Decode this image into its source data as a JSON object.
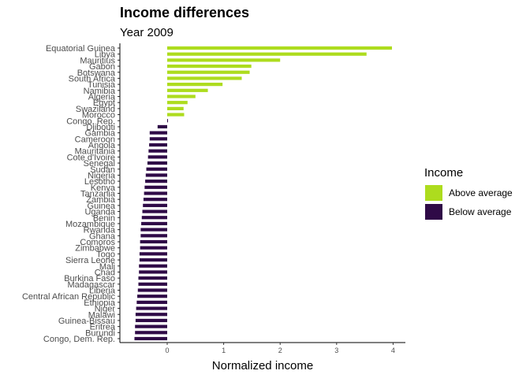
{
  "chart_data": {
    "type": "bar",
    "orientation": "horizontal",
    "title": "Income differences",
    "subtitle": "Year 2009",
    "xlabel": "Normalized income",
    "ylabel": "",
    "xlim": [
      -0.85,
      4.2
    ],
    "x_ticks": [
      0,
      1,
      2,
      3,
      4
    ],
    "grid": false,
    "legend": {
      "title": "Income",
      "placement": "right",
      "entries": [
        {
          "label": "Above average",
          "color": "#addc1e"
        },
        {
          "label": "Below average",
          "color": "#2f0a47"
        }
      ]
    },
    "categories": [
      "Equatorial Guinea",
      "Libya",
      "Mauritius",
      "Gabon",
      "Botswana",
      "South Africa",
      "Tunisia",
      "Namibia",
      "Algeria",
      "Egypt",
      "Swaziland",
      "Morocco",
      "Congo, Rep.",
      "Djibouti",
      "Gambia",
      "Cameroon",
      "Angola",
      "Mauritania",
      "Cote d'Ivoire",
      "Senegal",
      "Sudan",
      "Nigeria",
      "Lesotho",
      "Kenya",
      "Tanzania",
      "Zambia",
      "Guinea",
      "Uganda",
      "Benin",
      "Mozambique",
      "Rwanda",
      "Ghana",
      "Comoros",
      "Zimbabwe",
      "Togo",
      "Sierra Leone",
      "Mali",
      "Chad",
      "Burkina Faso",
      "Madagascar",
      "Liberia",
      "Central African Republic",
      "Ethiopia",
      "Niger",
      "Malawi",
      "Guinea-Bissau",
      "Eritrea",
      "Burundi",
      "Congo, Dem. Rep."
    ],
    "values": [
      3.98,
      3.53,
      2.0,
      1.49,
      1.46,
      1.32,
      0.98,
      0.72,
      0.5,
      0.36,
      0.29,
      0.3,
      0.01,
      -0.17,
      -0.31,
      -0.31,
      -0.32,
      -0.33,
      -0.34,
      -0.35,
      -0.37,
      -0.38,
      -0.39,
      -0.4,
      -0.41,
      -0.42,
      -0.43,
      -0.44,
      -0.45,
      -0.46,
      -0.47,
      -0.47,
      -0.48,
      -0.48,
      -0.49,
      -0.49,
      -0.5,
      -0.5,
      -0.51,
      -0.51,
      -0.52,
      -0.53,
      -0.54,
      -0.55,
      -0.56,
      -0.56,
      -0.57,
      -0.57,
      -0.58
    ],
    "groups": [
      "Above average",
      "Above average",
      "Above average",
      "Above average",
      "Above average",
      "Above average",
      "Above average",
      "Above average",
      "Above average",
      "Above average",
      "Above average",
      "Above average",
      "Below average",
      "Below average",
      "Below average",
      "Below average",
      "Below average",
      "Below average",
      "Below average",
      "Below average",
      "Below average",
      "Below average",
      "Below average",
      "Below average",
      "Below average",
      "Below average",
      "Below average",
      "Below average",
      "Below average",
      "Below average",
      "Below average",
      "Below average",
      "Below average",
      "Below average",
      "Below average",
      "Below average",
      "Below average",
      "Below average",
      "Below average",
      "Below average",
      "Below average",
      "Below average",
      "Below average",
      "Below average",
      "Below average",
      "Below average",
      "Below average",
      "Below average",
      "Below average"
    ]
  }
}
